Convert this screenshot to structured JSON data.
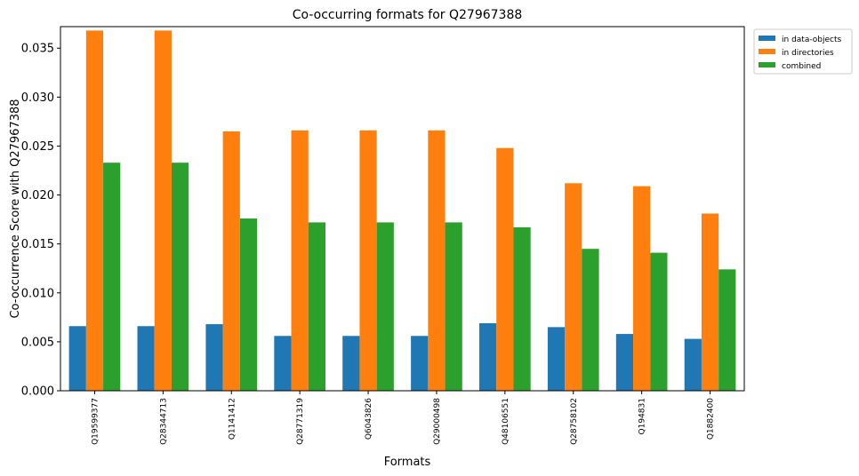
{
  "chart_data": {
    "type": "bar",
    "title": "Co-occurring formats for Q27967388",
    "xlabel": "Formats",
    "ylabel": "Co-occurrence Score with Q27967388",
    "categories": [
      "Q19599377",
      "Q28344713",
      "Q1141412",
      "Q28771319",
      "Q6043826",
      "Q29000498",
      "Q48106551",
      "Q28758102",
      "Q194831",
      "Q1882400"
    ],
    "series": [
      {
        "name": "in data-objects",
        "color": "#1f77b4",
        "values": [
          0.0066,
          0.0066,
          0.0068,
          0.0056,
          0.0056,
          0.0056,
          0.0069,
          0.0065,
          0.0058,
          0.0053
        ]
      },
      {
        "name": "in directories",
        "color": "#ff7f0e",
        "values": [
          0.0368,
          0.0368,
          0.0265,
          0.0266,
          0.0266,
          0.0266,
          0.0248,
          0.0212,
          0.0209,
          0.0181
        ]
      },
      {
        "name": "combined",
        "color": "#2ca02c",
        "values": [
          0.0233,
          0.0233,
          0.0176,
          0.0172,
          0.0172,
          0.0172,
          0.0167,
          0.0145,
          0.0141,
          0.0124
        ]
      }
    ],
    "ylim": [
      0,
      0.0372
    ],
    "yticks": [
      "0.000",
      "0.005",
      "0.010",
      "0.015",
      "0.020",
      "0.025",
      "0.030",
      "0.035"
    ],
    "grid": false,
    "legend_position": "outside-top-right"
  }
}
